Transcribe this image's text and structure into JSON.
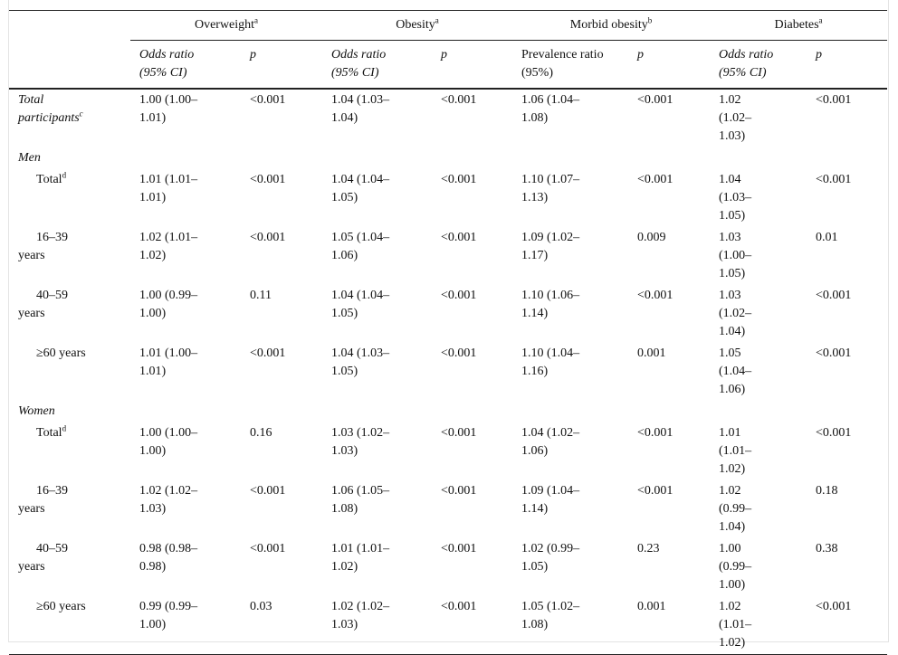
{
  "header": {
    "groups": [
      {
        "label": "Overweight",
        "note": "a"
      },
      {
        "label": "Obesity",
        "note": "a"
      },
      {
        "label": "Morbid obesity",
        "note": "b"
      },
      {
        "label": "Diabetes",
        "note": "a"
      }
    ],
    "subheaders": [
      {
        "lines": [
          "Odds ratio",
          "(95% CI)"
        ],
        "italic": true
      },
      {
        "lines": [
          "p"
        ],
        "italic": true
      },
      {
        "lines": [
          "Odds ratio",
          "(95% CI)"
        ],
        "italic": true
      },
      {
        "lines": [
          "p"
        ],
        "italic": true
      },
      {
        "lines": [
          "Prevalence ratio",
          "(95%)"
        ],
        "italic": false
      },
      {
        "lines": [
          "p"
        ],
        "italic": true
      },
      {
        "lines": [
          "Odds ratio",
          "(95% CI)"
        ],
        "italic": true
      },
      {
        "lines": [
          "p"
        ],
        "italic": true
      }
    ]
  },
  "overall": {
    "label": "Total participants",
    "note": "c",
    "cells": [
      "1.00 (1.00–1.01)",
      "<0.001",
      "1.04 (1.03–1.04)",
      "<0.001",
      "1.06 (1.04–1.08)",
      "<0.001",
      "1.02 (1.02–1.03)",
      "<0.001"
    ]
  },
  "sections": [
    {
      "title": "Men",
      "rows": [
        {
          "label": "Total",
          "note": "d",
          "cells": [
            "1.01 (1.01–1.01)",
            "<0.001",
            "1.04 (1.04–1.05)",
            "<0.001",
            "1.10 (1.07–1.13)",
            "<0.001",
            "1.04 (1.03–1.05)",
            "<0.001"
          ]
        },
        {
          "label": "16–39 years",
          "cells": [
            "1.02 (1.01–1.02)",
            "<0.001",
            "1.05 (1.04–1.06)",
            "<0.001",
            "1.09 (1.02–1.17)",
            "0.009",
            "1.03 (1.00–1.05)",
            "0.01"
          ]
        },
        {
          "label": "40–59 years",
          "cells": [
            "1.00 (0.99–1.00)",
            "0.11",
            "1.04 (1.04–1.05)",
            "<0.001",
            "1.10 (1.06–1.14)",
            "<0.001",
            "1.03 (1.02–1.04)",
            "<0.001"
          ]
        },
        {
          "label": "≥60 years",
          "cells": [
            "1.01 (1.00–1.01)",
            "<0.001",
            "1.04 (1.03–1.05)",
            "<0.001",
            "1.10 (1.04–1.16)",
            "0.001",
            "1.05 (1.04–1.06)",
            "<0.001"
          ]
        }
      ]
    },
    {
      "title": "Women",
      "rows": [
        {
          "label": "Total",
          "note": "d",
          "cells": [
            "1.00 (1.00–1.00)",
            "0.16",
            "1.03 (1.02–1.03)",
            "<0.001",
            "1.04 (1.02–1.06)",
            "<0.001",
            "1.01 (1.01–1.02)",
            "<0.001"
          ]
        },
        {
          "label": "16–39 years",
          "cells": [
            "1.02 (1.02–1.03)",
            "<0.001",
            "1.06 (1.05–1.08)",
            "<0.001",
            "1.09 (1.04–1.14)",
            "<0.001",
            "1.02 (0.99–1.04)",
            "0.18"
          ]
        },
        {
          "label": "40–59 years",
          "cells": [
            "0.98 (0.98–0.98)",
            "<0.001",
            "1.01 (1.01–1.02)",
            "<0.001",
            "1.02 (0.99–1.05)",
            "0.23",
            "1.00 (0.99–1.00)",
            "0.38"
          ]
        },
        {
          "label": "≥60 years",
          "cells": [
            "0.99 (0.99–1.00)",
            "0.03",
            "1.02 (1.02–1.03)",
            "<0.001",
            "1.05 (1.02–1.08)",
            "0.001",
            "1.02 (1.01–1.02)",
            "<0.001"
          ]
        }
      ]
    }
  ]
}
